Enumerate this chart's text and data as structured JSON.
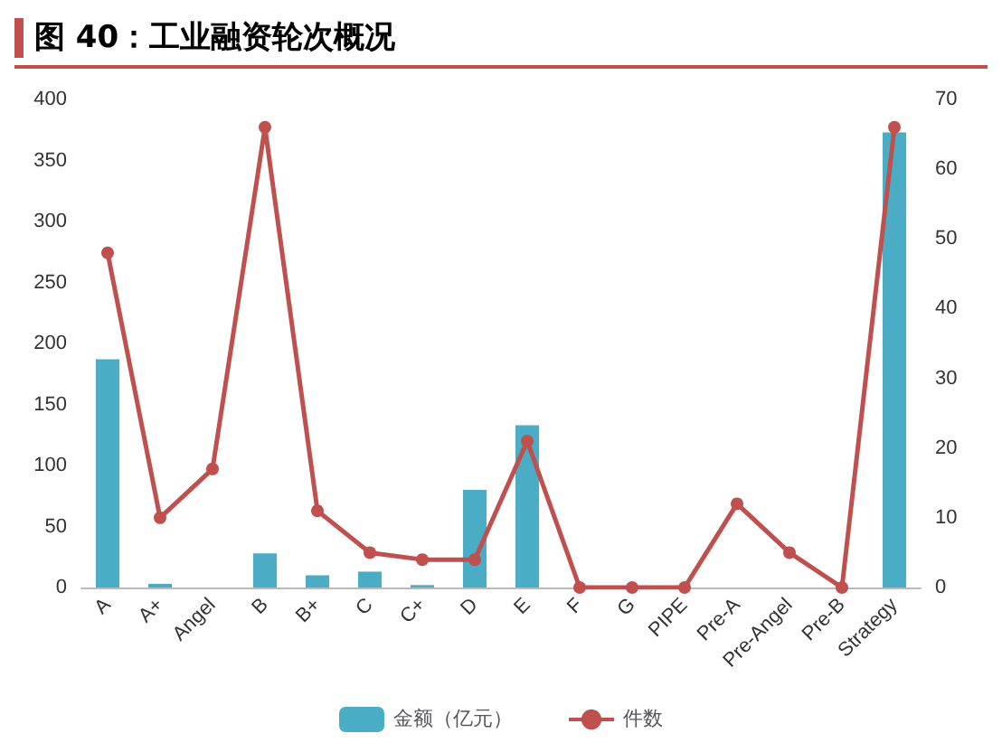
{
  "chart_data": {
    "type": "bar",
    "title": "图 40：工业融资轮次概况",
    "categories": [
      "A",
      "A+",
      "Angel",
      "B",
      "B+",
      "C",
      "C+",
      "D",
      "E",
      "F",
      "G",
      "PIPE",
      "Pre-A",
      "Pre-Angel",
      "Pre-B",
      "Strategy"
    ],
    "series": [
      {
        "name": "金额（亿元）",
        "color": "#4bacc6",
        "values": [
          187,
          3,
          0,
          28,
          10,
          13,
          2,
          80,
          133,
          0,
          0,
          0,
          0,
          0,
          0,
          373
        ]
      },
      {
        "name": "件数",
        "type": "line",
        "axis": "y2",
        "color": "#c0504d",
        "marker": "circle",
        "values": [
          48,
          10,
          17,
          66,
          11,
          5,
          4,
          4,
          21,
          0,
          0,
          0,
          12,
          5,
          0,
          66
        ]
      }
    ],
    "ylim": [
      0,
      400
    ],
    "yticks": [
      0,
      50,
      100,
      150,
      200,
      250,
      300,
      350,
      400
    ],
    "y2lim": [
      0,
      70
    ],
    "y2ticks": [
      0,
      10,
      20,
      30,
      40,
      50,
      60,
      70
    ],
    "grid": false,
    "legend": "bottom"
  }
}
